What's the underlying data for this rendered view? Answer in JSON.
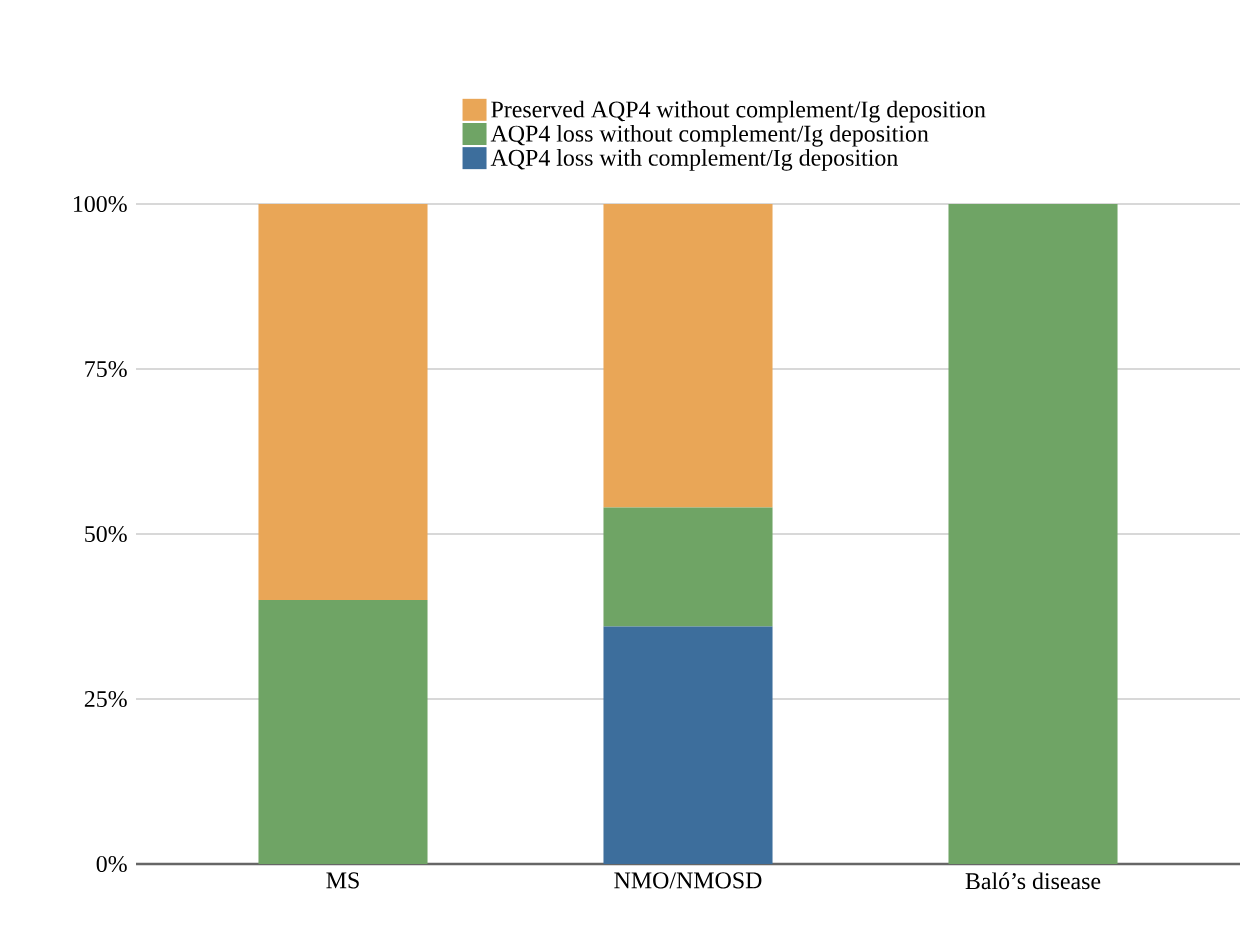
{
  "chart_data": {
    "type": "bar",
    "stacked": true,
    "categories": [
      "MS",
      "NMO/NMOSD",
      "Baló’s disease"
    ],
    "series": [
      {
        "name": "AQP4 loss with complement/Ig deposition",
        "color": "#3d6e9c",
        "values": [
          null,
          36,
          null
        ]
      },
      {
        "name": "AQP4 loss without complement/Ig deposition",
        "color": "#6fa465",
        "values": [
          40,
          18,
          100
        ]
      },
      {
        "name": "Preserved AQP4 without complement/Ig deposition",
        "color": "#e9a657",
        "values": [
          60,
          46,
          null
        ]
      }
    ],
    "ylim": [
      0,
      100
    ],
    "yticks": [
      {
        "value": 0,
        "label": "0%"
      },
      {
        "value": 25,
        "label": "25%"
      },
      {
        "value": 50,
        "label": "50%"
      },
      {
        "value": 75,
        "label": "75%"
      },
      {
        "value": 100,
        "label": "100%"
      }
    ],
    "grid": "y",
    "legend": "top"
  }
}
